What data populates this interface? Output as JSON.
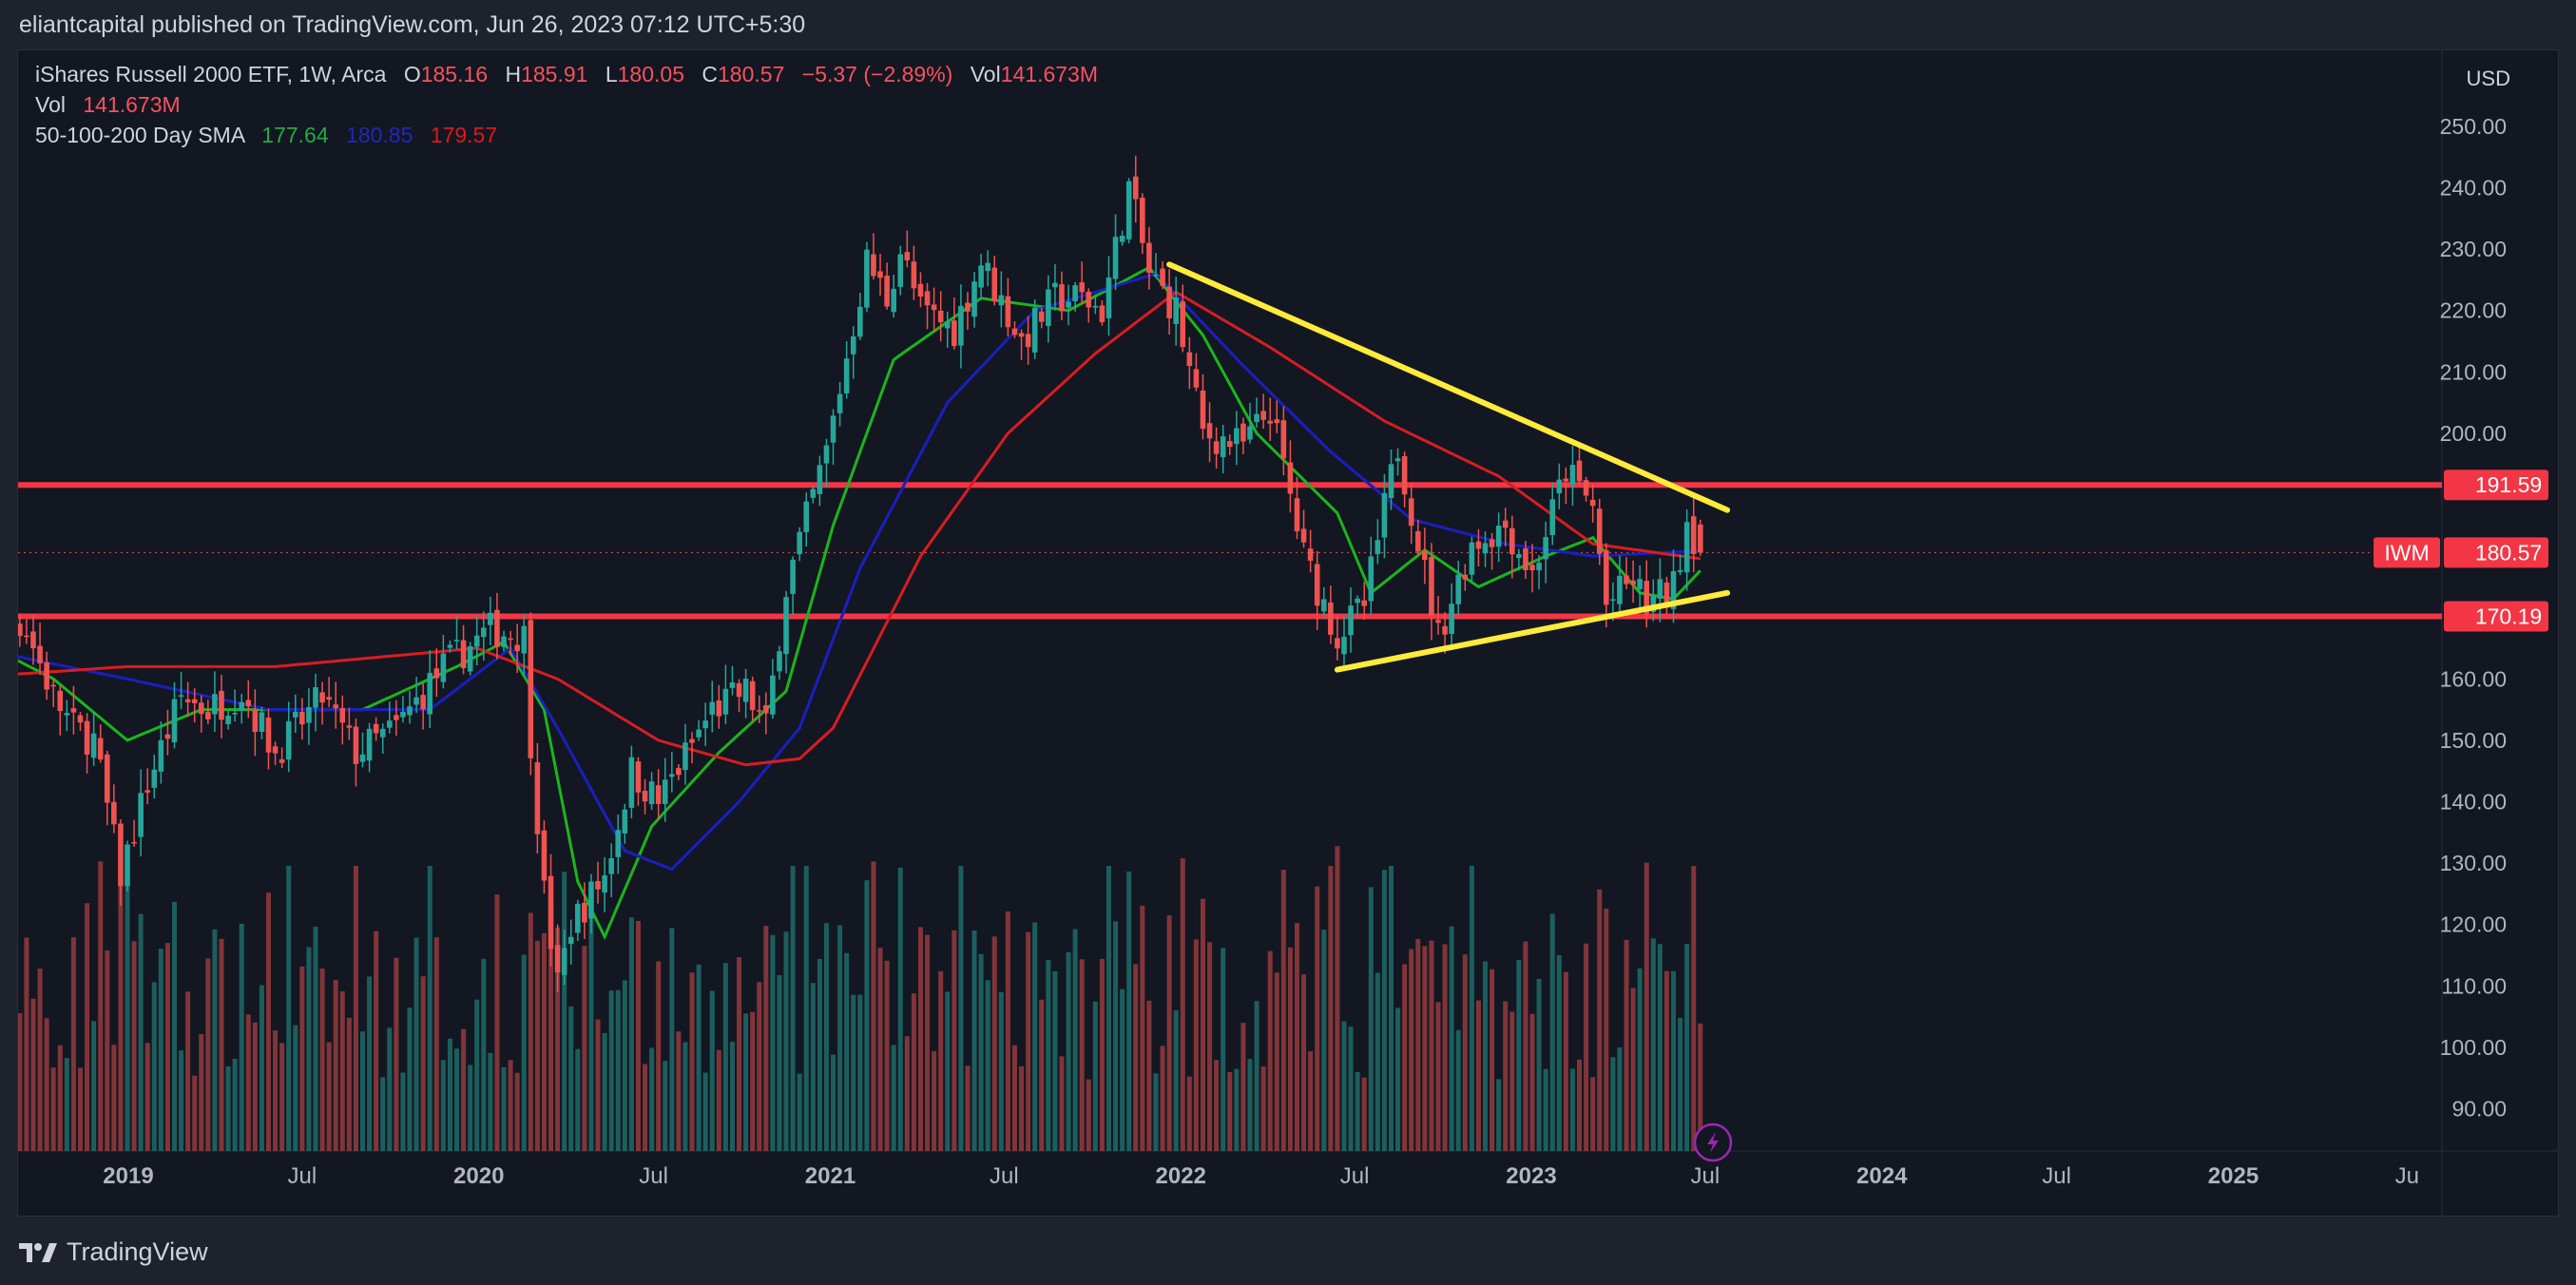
{
  "header": {
    "publish_line": "eliantcapital published on TradingView.com, Jun 26, 2023 07:12 UTC+5:30"
  },
  "legend": {
    "symbol": "iShares Russell 2000 ETF, 1W, Arca",
    "o_label": "O",
    "o_value": "185.16",
    "h_label": "H",
    "h_value": "185.91",
    "l_label": "L",
    "l_value": "180.05",
    "c_label": "C",
    "c_value": "180.57",
    "change": "−5.37 (−2.89%)",
    "vol_label": "Vol",
    "vol_value": "141.673M",
    "vol_row_label": "Vol",
    "vol_row_value": "141.673M",
    "sma_label": "50-100-200 Day SMA",
    "sma_50": "177.64",
    "sma_100": "180.85",
    "sma_200": "179.57"
  },
  "colors": {
    "background": "#131722",
    "up": "#26a69a",
    "down": "#ef5350",
    "sma_50": "#1bb51b",
    "sma_100": "#1a1fbf",
    "sma_200": "#d81d22",
    "level_lines": "#f23645",
    "trend_lines": "#ffeb3b",
    "text": "#d1d4dc"
  },
  "footer": {
    "brand": "TradingView",
    "logo_icon": "tradingview-logo-icon"
  },
  "replay_icon": "lightning-icon",
  "chart_data": {
    "type": "candlestick",
    "timeframe": "1W",
    "symbol": "IWM",
    "currency": "USD",
    "price_axis": {
      "unit": "USD",
      "ticks": [
        "250.00",
        "240.00",
        "230.00",
        "220.00",
        "210.00",
        "200.00",
        "160.00",
        "150.00",
        "140.00",
        "130.00",
        "120.00",
        "110.00",
        "100.00",
        "90.00"
      ],
      "range": [
        80,
        255
      ]
    },
    "time_axis": {
      "ticks": [
        "2019",
        "Jul",
        "2020",
        "Jul",
        "2021",
        "Jul",
        "2022",
        "Jul",
        "2023",
        "Jul",
        "2024",
        "Jul",
        "2025",
        "Ju"
      ],
      "tick_dates": [
        "2019-01-01",
        "2019-07-01",
        "2020-01-01",
        "2020-07-01",
        "2021-01-01",
        "2021-07-01",
        "2022-01-01",
        "2022-07-01",
        "2023-01-01",
        "2023-07-01",
        "2024-01-01",
        "2024-07-01",
        "2025-01-01",
        "2025-07-01"
      ],
      "range": [
        "2018-06-25",
        "2025-06-30"
      ]
    },
    "last_price": {
      "symbol": "IWM",
      "value": "180.57"
    },
    "horizontal_levels": [
      {
        "value": 191.59,
        "label": "191.59"
      },
      {
        "value": 170.19,
        "label": "170.19"
      }
    ],
    "trend_lines": [
      {
        "from": [
          "2021-12-20",
          227.5
        ],
        "to": [
          "2023-07-24",
          187.5
        ]
      },
      {
        "from": [
          "2022-06-13",
          161.5
        ],
        "to": [
          "2023-07-24",
          174.0
        ]
      }
    ],
    "price_anchors": [
      [
        "2018-06-25",
        171.0
      ],
      [
        "2018-07-16",
        169.0
      ],
      [
        "2018-08-27",
        171.0
      ],
      [
        "2018-09-17",
        168.0
      ],
      [
        "2018-10-15",
        157.0
      ],
      [
        "2018-11-05",
        152.0
      ],
      [
        "2018-11-26",
        150.0
      ],
      [
        "2018-12-24",
        128.0
      ],
      [
        "2019-01-21",
        143.0
      ],
      [
        "2019-02-25",
        157.0
      ],
      [
        "2019-03-25",
        155.0
      ],
      [
        "2019-04-29",
        158.0
      ],
      [
        "2019-06-03",
        148.0
      ],
      [
        "2019-07-22",
        157.0
      ],
      [
        "2019-08-26",
        148.0
      ],
      [
        "2019-10-07",
        152.0
      ],
      [
        "2019-11-25",
        162.0
      ],
      [
        "2020-01-13",
        168.0
      ],
      [
        "2020-02-17",
        167.0
      ],
      [
        "2020-02-24",
        150.0
      ],
      [
        "2020-03-09",
        125.0
      ],
      [
        "2020-03-23",
        110.0
      ],
      [
        "2020-04-06",
        120.0
      ],
      [
        "2020-05-11",
        128.0
      ],
      [
        "2020-06-08",
        145.0
      ],
      [
        "2020-07-06",
        140.0
      ],
      [
        "2020-08-31",
        155.0
      ],
      [
        "2020-10-05",
        158.0
      ],
      [
        "2020-10-26",
        152.0
      ],
      [
        "2020-11-16",
        175.0
      ],
      [
        "2020-12-28",
        197.0
      ],
      [
        "2021-02-08",
        228.0
      ],
      [
        "2021-03-01",
        222.0
      ],
      [
        "2021-03-15",
        230.0
      ],
      [
        "2021-04-05",
        220.0
      ],
      [
        "2021-05-10",
        217.0
      ],
      [
        "2021-06-07",
        228.0
      ],
      [
        "2021-07-19",
        215.0
      ],
      [
        "2021-08-23",
        222.0
      ],
      [
        "2021-09-20",
        222.0
      ],
      [
        "2021-10-11",
        220.0
      ],
      [
        "2021-11-08",
        240.0
      ],
      [
        "2021-11-29",
        226.0
      ],
      [
        "2021-12-27",
        220.0
      ],
      [
        "2022-01-24",
        200.0
      ],
      [
        "2022-03-07",
        198.0
      ],
      [
        "2022-04-04",
        204.0
      ],
      [
        "2022-05-09",
        180.0
      ],
      [
        "2022-06-13",
        167.0
      ],
      [
        "2022-07-11",
        172.0
      ],
      [
        "2022-08-15",
        198.0
      ],
      [
        "2022-09-26",
        167.0
      ],
      [
        "2022-10-31",
        182.0
      ],
      [
        "2022-12-05",
        185.0
      ],
      [
        "2023-01-02",
        177.0
      ],
      [
        "2023-02-06",
        194.0
      ],
      [
        "2023-03-06",
        188.0
      ],
      [
        "2023-03-20",
        172.0
      ],
      [
        "2023-04-17",
        176.0
      ],
      [
        "2023-05-01",
        172.0
      ],
      [
        "2023-05-29",
        175.0
      ],
      [
        "2023-06-12",
        186.0
      ],
      [
        "2023-06-26",
        180.57
      ]
    ],
    "sma_anchors": {
      "sma_50": [
        [
          "2018-06-25",
          169
        ],
        [
          "2018-10-15",
          160
        ],
        [
          "2018-12-31",
          150
        ],
        [
          "2019-03-18",
          155
        ],
        [
          "2019-09-02",
          155
        ],
        [
          "2019-12-09",
          162
        ],
        [
          "2020-01-27",
          166
        ],
        [
          "2020-03-09",
          155
        ],
        [
          "2020-04-13",
          127
        ],
        [
          "2020-05-11",
          118
        ],
        [
          "2020-06-29",
          136
        ],
        [
          "2020-09-07",
          148
        ],
        [
          "2020-11-16",
          158
        ],
        [
          "2021-01-04",
          185
        ],
        [
          "2021-03-08",
          212
        ],
        [
          "2021-06-07",
          222
        ],
        [
          "2021-09-06",
          220
        ],
        [
          "2021-11-29",
          227
        ],
        [
          "2022-01-24",
          216
        ],
        [
          "2022-03-21",
          200
        ],
        [
          "2022-06-13",
          187
        ],
        [
          "2022-07-18",
          174
        ],
        [
          "2022-09-12",
          181
        ],
        [
          "2022-11-07",
          175
        ],
        [
          "2023-01-16",
          180
        ],
        [
          "2023-03-06",
          183
        ],
        [
          "2023-04-24",
          174
        ],
        [
          "2023-05-29",
          173
        ],
        [
          "2023-06-26",
          177.64
        ]
      ],
      "sma_100": [
        [
          "2018-06-25",
          166
        ],
        [
          "2018-12-31",
          160
        ],
        [
          "2019-05-27",
          155
        ],
        [
          "2019-11-11",
          155
        ],
        [
          "2020-02-03",
          165
        ],
        [
          "2020-03-23",
          152
        ],
        [
          "2020-06-01",
          132
        ],
        [
          "2020-07-20",
          129
        ],
        [
          "2020-09-28",
          140
        ],
        [
          "2020-11-30",
          152
        ],
        [
          "2021-02-01",
          178
        ],
        [
          "2021-05-03",
          205
        ],
        [
          "2021-08-02",
          220
        ],
        [
          "2021-12-06",
          226
        ],
        [
          "2022-03-07",
          211
        ],
        [
          "2022-06-06",
          197
        ],
        [
          "2022-08-29",
          186
        ],
        [
          "2022-12-05",
          182
        ],
        [
          "2023-03-06",
          180
        ],
        [
          "2023-06-26",
          180.85
        ]
      ],
      "sma_200": [
        [
          "2018-06-25",
          160
        ],
        [
          "2018-12-31",
          162
        ],
        [
          "2019-06-03",
          162
        ],
        [
          "2019-12-30",
          165
        ],
        [
          "2020-03-23",
          160
        ],
        [
          "2020-07-06",
          150
        ],
        [
          "2020-10-05",
          146
        ],
        [
          "2020-11-30",
          147
        ],
        [
          "2021-01-04",
          152
        ],
        [
          "2021-04-05",
          180
        ],
        [
          "2021-07-05",
          200
        ],
        [
          "2021-10-04",
          213
        ],
        [
          "2021-12-27",
          223
        ],
        [
          "2022-04-04",
          214
        ],
        [
          "2022-08-01",
          202
        ],
        [
          "2022-11-28",
          193
        ],
        [
          "2023-03-06",
          182
        ],
        [
          "2023-06-26",
          179.57
        ]
      ]
    },
    "volume_note": "Weekly volume histogram in lower pane, colored by candle direction",
    "legend_items": [
      "iShares Russell 2000 ETF, 1W, Arca",
      "Vol",
      "50-100-200 Day SMA"
    ]
  }
}
